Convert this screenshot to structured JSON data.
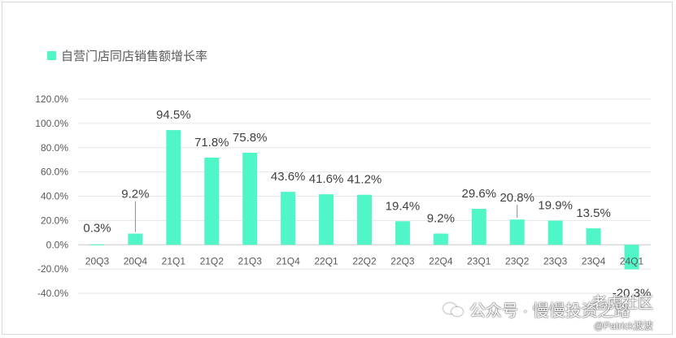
{
  "chart_data": {
    "type": "bar",
    "title": "",
    "xlabel": "",
    "ylabel": "",
    "legend": {
      "label": "自营门店同店销售额增长率",
      "position": "top-left"
    },
    "categories": [
      "20Q3",
      "20Q4",
      "21Q1",
      "21Q2",
      "21Q3",
      "21Q4",
      "22Q1",
      "22Q2",
      "22Q3",
      "22Q4",
      "23Q1",
      "23Q2",
      "23Q3",
      "23Q4",
      "24Q1"
    ],
    "series": [
      {
        "name": "自营门店同店销售额增长率",
        "values": [
          0.3,
          9.2,
          94.5,
          71.8,
          75.8,
          43.6,
          41.6,
          41.2,
          19.4,
          9.2,
          29.6,
          20.8,
          19.9,
          13.5,
          -20.3
        ]
      }
    ],
    "data_labels": [
      "0.3%",
      "9.2%",
      "94.5%",
      "71.8%",
      "75.8%",
      "43.6%",
      "41.6%",
      "41.2%",
      "19.4%",
      "9.2%",
      "29.6%",
      "20.8%",
      "19.9%",
      "13.5%",
      "-20.3%"
    ],
    "ylim": [
      -40,
      120
    ],
    "yticks": [
      120,
      100,
      80,
      60,
      40,
      20,
      0,
      -20,
      -40
    ],
    "ytick_labels": [
      "120.0%",
      "100.0%",
      "80.0%",
      "60.0%",
      "40.0%",
      "20.0%",
      "0.0%",
      "-20.0%",
      "-40.0%"
    ],
    "grid": true,
    "bar_color": "#50f5c8"
  },
  "watermark": {
    "main": "公众号 · 慢慢投资之路",
    "corner": "老虎社区",
    "sub": "@Patrick波波"
  }
}
